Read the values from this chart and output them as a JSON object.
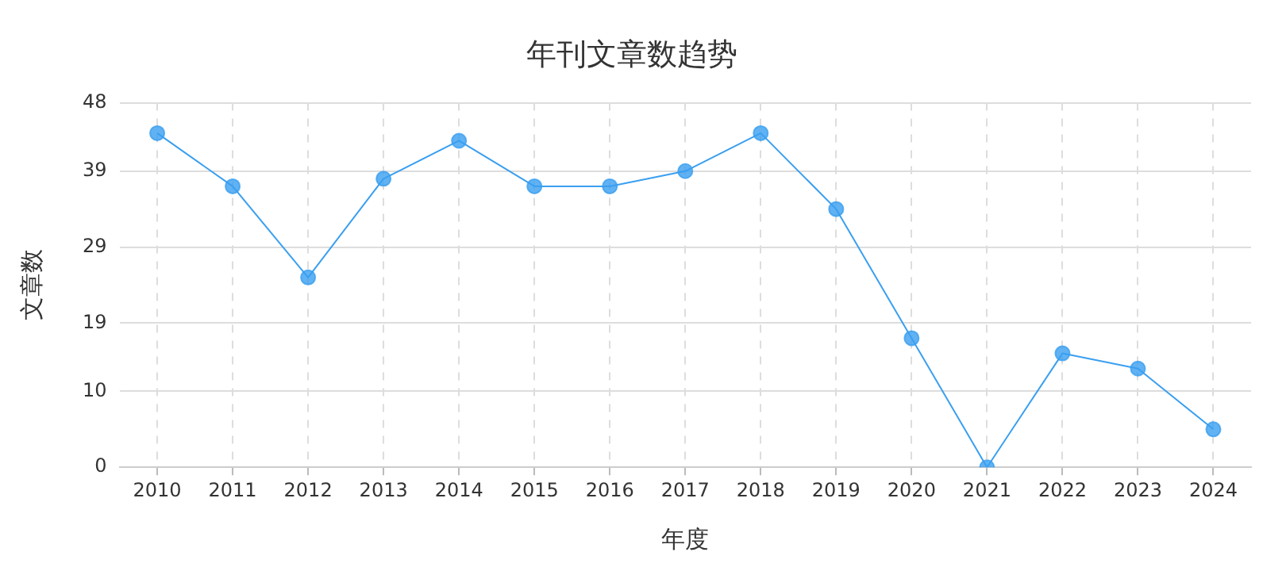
{
  "chart_data": {
    "type": "line",
    "title": "年刊文章数趋势",
    "xlabel": "年度",
    "ylabel": "文章数",
    "categories": [
      "2010",
      "2011",
      "2012",
      "2013",
      "2014",
      "2015",
      "2016",
      "2017",
      "2018",
      "2019",
      "2020",
      "2021",
      "2022",
      "2023",
      "2024"
    ],
    "series": [
      {
        "color": "#3a9ff0",
        "values": [
          44,
          37,
          25,
          38,
          43,
          37,
          37,
          39,
          44,
          34,
          17,
          0,
          15,
          13,
          5
        ]
      }
    ],
    "ylim": [
      0,
      48
    ],
    "yticks": [
      0,
      10,
      19,
      29,
      39,
      48
    ],
    "grid": true,
    "legend": false,
    "marker": "circle",
    "line_style": "solid"
  }
}
